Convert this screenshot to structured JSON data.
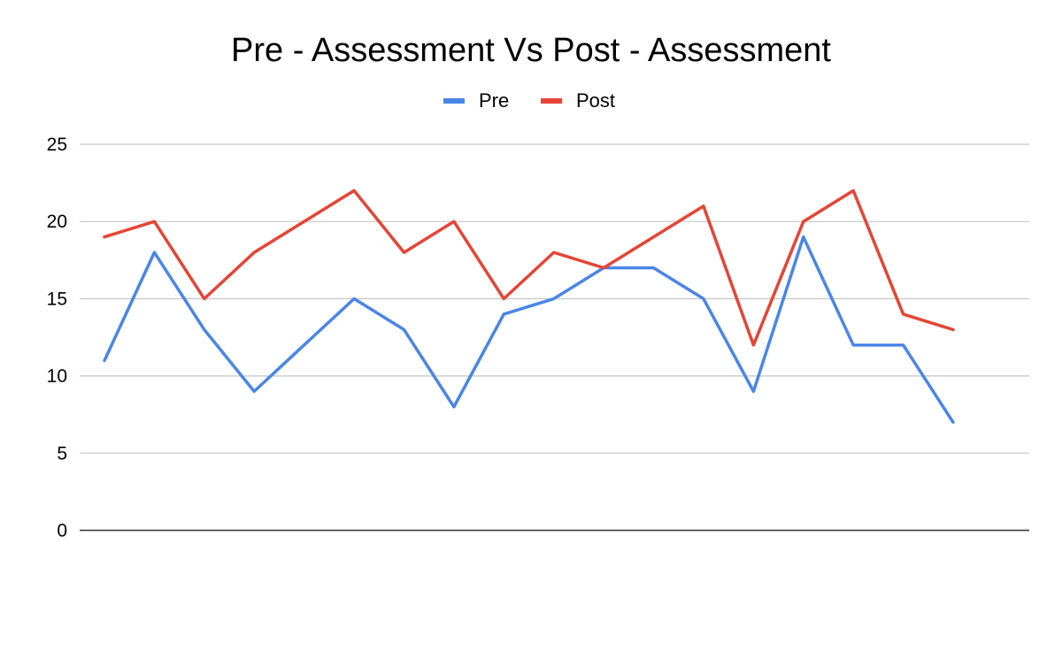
{
  "chart_data": {
    "type": "line",
    "title": "Pre - Assessment Vs Post - Assessment",
    "xlabel": "",
    "ylabel": "",
    "ylim": [
      0,
      25
    ],
    "yticks": [
      0,
      5,
      10,
      15,
      20,
      25
    ],
    "grid": true,
    "legend_position": "top-center",
    "x": [
      1,
      2,
      3,
      4,
      5,
      6,
      7,
      8,
      9,
      10,
      11,
      12,
      13,
      14,
      15,
      16,
      17,
      18
    ],
    "series": [
      {
        "name": "Pre",
        "color": "#4a86e8",
        "values": [
          11,
          18,
          13,
          9,
          12,
          15,
          13,
          8,
          14,
          15,
          17,
          17,
          15,
          9,
          19,
          12,
          12,
          7
        ]
      },
      {
        "name": "Post",
        "color": "#e64535",
        "values": [
          19,
          20,
          15,
          18,
          20,
          22,
          18,
          20,
          15,
          18,
          17,
          19,
          21,
          12,
          20,
          22,
          14,
          13
        ]
      }
    ]
  }
}
